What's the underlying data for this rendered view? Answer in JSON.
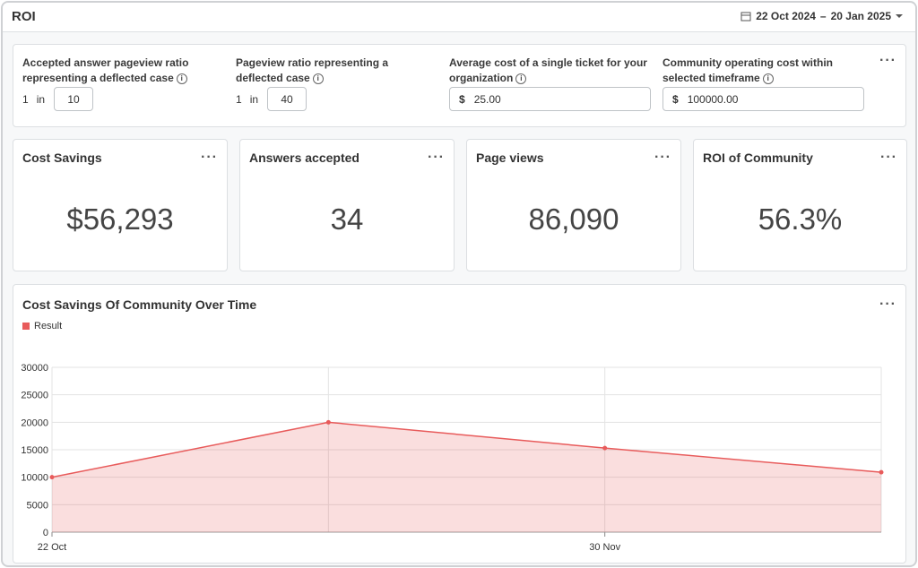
{
  "header": {
    "title": "ROI",
    "date_start": "22 Oct 2024",
    "date_separator": "–",
    "date_end": "20 Jan 2025"
  },
  "settings": [
    {
      "label": "Accepted answer pageview ratio representing a deflected case",
      "prefix": "1",
      "joiner": "in",
      "value": "10"
    },
    {
      "label": "Pageview ratio representing a deflected case",
      "prefix": "1",
      "joiner": "in",
      "value": "40"
    },
    {
      "label": "Average cost of a single ticket for your organization",
      "prefix": "$",
      "value": "25.00"
    },
    {
      "label": "Community operating cost within selected timeframe",
      "prefix": "$",
      "value": "100000.00"
    }
  ],
  "cards": [
    {
      "title": "Cost Savings",
      "value": "$56,293"
    },
    {
      "title": "Answers accepted",
      "value": "34"
    },
    {
      "title": "Page views",
      "value": "86,090"
    },
    {
      "title": "ROI of Community",
      "value": "56.3%"
    }
  ],
  "chart_data": {
    "type": "area",
    "title": "Cost Savings Of Community Over Time",
    "categories": [
      "22 Oct",
      null,
      "30 Nov",
      null
    ],
    "series": [
      {
        "name": "Result",
        "color": "#e85b5b",
        "values": [
          10000,
          20000,
          15300,
          10900
        ]
      }
    ],
    "ylim": [
      0,
      30000
    ],
    "yticks": [
      0,
      5000,
      10000,
      15000,
      20000,
      25000,
      30000
    ],
    "grid": true,
    "legend": "top-left"
  }
}
